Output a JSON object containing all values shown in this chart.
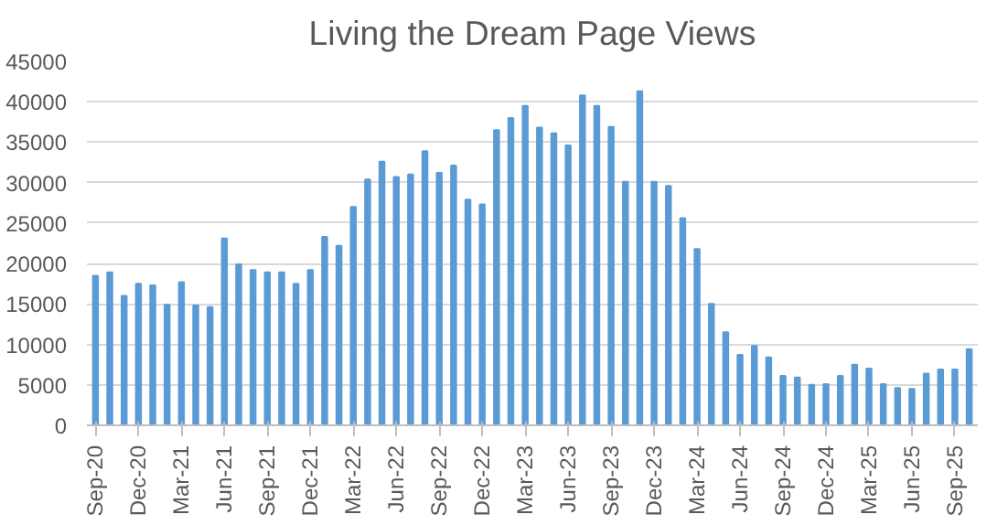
{
  "chart_data": {
    "type": "bar",
    "title": "Living the Dream Page Views",
    "categories": [
      "Sep-20",
      null,
      null,
      "Dec-20",
      null,
      null,
      "Mar-21",
      null,
      null,
      "Jun-21",
      null,
      null,
      "Sep-21",
      null,
      null,
      "Dec-21",
      null,
      null,
      "Mar-22",
      null,
      null,
      "Jun-22",
      null,
      null,
      "Sep-22",
      null,
      null,
      "Dec-22",
      null,
      null,
      "Mar-23",
      null,
      null,
      "Jun-23",
      null,
      null,
      "Sep-23",
      null,
      null,
      "Dec-23",
      null,
      null,
      "Mar-24",
      null,
      null,
      "Jun-24",
      null,
      null,
      "Sep-24",
      null,
      null,
      "Dec-24",
      null,
      null,
      "Mar-25",
      null,
      null,
      "Jun-25",
      null,
      null,
      "Sep-25",
      null
    ],
    "values": [
      18500,
      18900,
      16000,
      17500,
      17300,
      14900,
      17700,
      14800,
      14600,
      23100,
      19900,
      19200,
      18900,
      18900,
      17500,
      19200,
      23300,
      22200,
      27000,
      30400,
      32600,
      30700,
      31000,
      33900,
      31200,
      32100,
      27900,
      27300,
      36500,
      38000,
      39500,
      36800,
      36100,
      34600,
      40800,
      39500,
      36900,
      30100,
      41300,
      30100,
      29600,
      25600,
      21800,
      15000,
      11500,
      8700,
      9800,
      8400,
      6100,
      5900,
      5000,
      5100,
      6100,
      7500,
      7000,
      5100,
      4600,
      4500,
      6400,
      6900,
      6900,
      9400
    ],
    "color": "#5b9bd5",
    "ylim": [
      0,
      45000
    ],
    "yticks": [
      0,
      5000,
      10000,
      15000,
      20000,
      25000,
      30000,
      35000,
      40000,
      45000
    ],
    "grid": "y"
  }
}
